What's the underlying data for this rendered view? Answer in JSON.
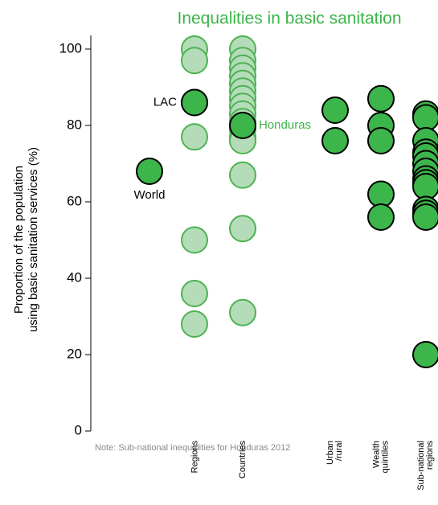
{
  "chart_data": {
    "type": "strip",
    "title": "Inequalities in basic sanitation",
    "ylabel": [
      "Proportion of the population",
      "using basic sanitation services (%)"
    ],
    "note": "Note: Sub-national inequalities for Honduras  2012",
    "ylim": [
      0,
      100
    ],
    "yticks": [
      0,
      20,
      40,
      60,
      80,
      100
    ],
    "categories": [
      null,
      "Regions",
      "Countries",
      "Urban\n/rural",
      "Wealth\nquintiles",
      "Sub-national\nregions"
    ],
    "faded_color": "#b5dcb9",
    "faded_edge": "#4cb352",
    "strong_color": "#3cb54a",
    "strong_edge": "#000000",
    "title_color": "#3cb54a",
    "groups": [
      {
        "faded": [],
        "strong": [
          68
        ]
      },
      {
        "faded": [
          100,
          97,
          86,
          77,
          50,
          36,
          28
        ],
        "strong": [
          86
        ]
      },
      {
        "faded": [
          100,
          97,
          95,
          93,
          91,
          89,
          87,
          85,
          83,
          81,
          79,
          77,
          76,
          67,
          53,
          31
        ],
        "strong": [
          80
        ]
      },
      {
        "faded": [],
        "strong": [
          84,
          76
        ]
      },
      {
        "faded": [],
        "strong": [
          87,
          80,
          76,
          62,
          56
        ]
      },
      {
        "faded": [],
        "strong": [
          83,
          82,
          76,
          73,
          72,
          70,
          68,
          66,
          65,
          64,
          58,
          57,
          56,
          20
        ]
      }
    ],
    "annotations": [
      "World",
      "LAC",
      "Honduras"
    ]
  }
}
